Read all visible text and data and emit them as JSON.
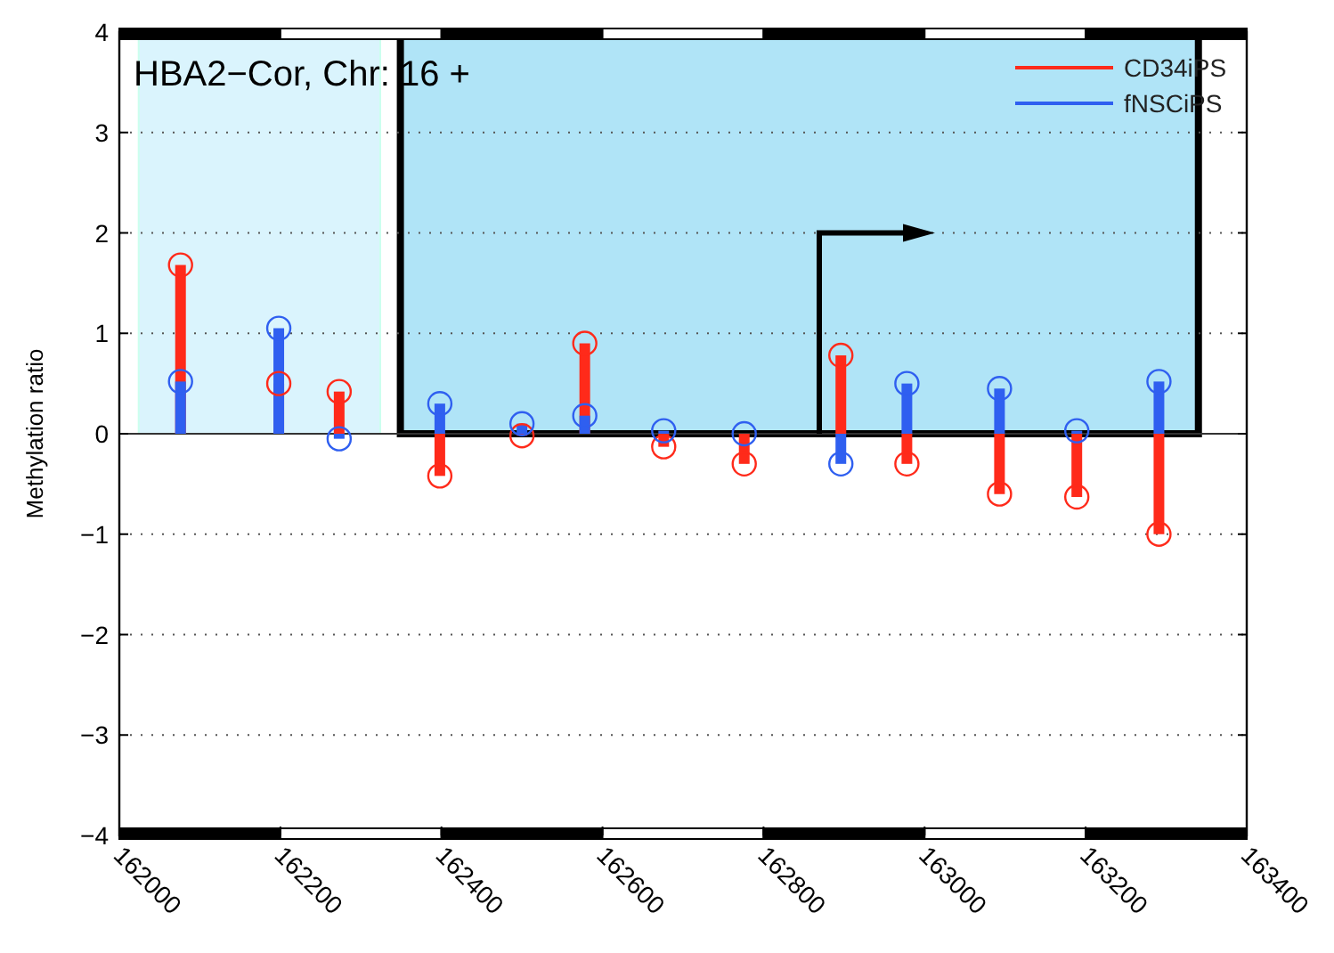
{
  "chart_data": {
    "type": "lollipop",
    "title": "HBA2−Cor, Chr: 16 +",
    "ylabel": "Methylation ratio",
    "x": [
      162076,
      162198,
      162273,
      162398,
      162500,
      162578,
      162676,
      162776,
      162896,
      162978,
      163093,
      163189,
      163291
    ],
    "series": [
      {
        "name": "CD34iPS",
        "color": "#ff2a1a",
        "values": [
          1.68,
          0.5,
          0.42,
          -0.42,
          -0.02,
          0.9,
          -0.13,
          -0.3,
          0.78,
          -0.3,
          -0.6,
          -0.63,
          -1.0
        ]
      },
      {
        "name": "fNSCiPS",
        "color": "#2f5ff0",
        "values": [
          0.52,
          1.05,
          -0.05,
          0.3,
          0.1,
          0.18,
          0.03,
          0.0,
          -0.3,
          0.5,
          0.45,
          0.03,
          0.52
        ]
      }
    ],
    "xlim": [
      162000,
      163400
    ],
    "xticks": [
      162000,
      162200,
      162400,
      162600,
      162800,
      163000,
      163200,
      163400
    ],
    "ylim": [
      -4,
      4
    ],
    "yticks": [
      -4,
      -3,
      -2,
      -1,
      0,
      1,
      2,
      3,
      4
    ],
    "bands": [
      {
        "axis": "x",
        "from": 162024,
        "to": 162324,
        "color": "#daf4fd"
      },
      {
        "axis": "x",
        "from": 162349,
        "to": 163340,
        "color": "#b0e4f7"
      }
    ],
    "grid": "y",
    "legend": "top right",
    "marker": "circle"
  }
}
